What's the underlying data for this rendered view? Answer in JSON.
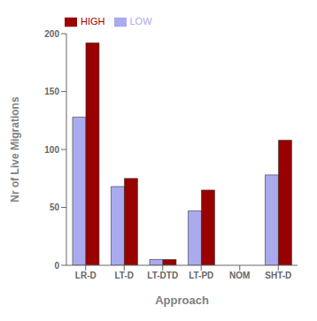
{
  "chart_data": {
    "type": "bar",
    "categories": [
      "LR-D",
      "LT-D",
      "LT-DTD",
      "LT-PD",
      "NOM",
      "SHT-D"
    ],
    "series": [
      {
        "name": "LOW",
        "color": "#aaaaee",
        "values": [
          128,
          68,
          5,
          47,
          0,
          78
        ]
      },
      {
        "name": "HIGH",
        "color": "#990000",
        "values": [
          192,
          75,
          5,
          65,
          0,
          108
        ]
      }
    ],
    "xlabel": "Approach",
    "ylabel": "Nr of Live Migrations",
    "ylim": [
      0,
      200
    ],
    "yticks": [
      0,
      50,
      100,
      150,
      200
    ],
    "grid": false,
    "legend": "upper left"
  }
}
